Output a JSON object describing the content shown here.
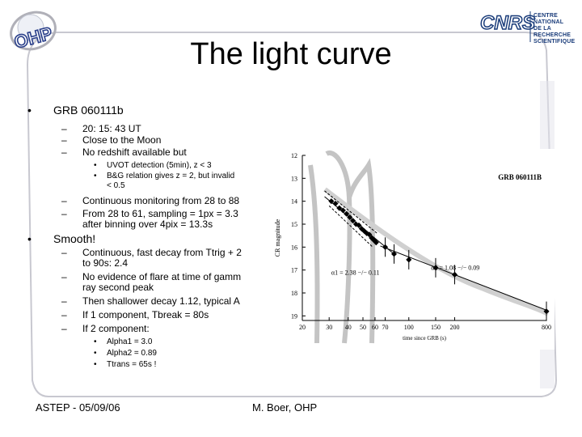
{
  "slide": {
    "title": "The light curve",
    "footer_left": "ASTEP - 05/09/06",
    "footer_right": "M. Boer, OHP",
    "accent_color": "#c8c8d0"
  },
  "logos": {
    "left_text": "OHP",
    "right_text": "CNRS",
    "right_caption_1": "CENTRE NATIONAL",
    "right_caption_2": "DE LA RECHERCHE",
    "right_caption_3": "SCIENTIFIQUE"
  },
  "bullets": {
    "b1": "GRB 060111b",
    "b1_1": "20: 15: 43 UT",
    "b1_2": "Close to the Moon",
    "b1_3": "No redshift available but",
    "b1_3_1": "UVOT detection (5min), z < 3",
    "b1_3_2": "B&G relation gives z = 2, but invalid",
    "b1_3_2b": "< 0.5",
    "b1_4": "Continuous monitoring from 28 to 88",
    "b1_5": "From 28 to 61, sampling = 1px = 3.3",
    "b1_5b": "after binning over 4pix = 13.3s",
    "b2": "Smooth!",
    "b2_1": "Continuous, fast decay from Ttrig + 2",
    "b2_1b": "to 90s: 2.4",
    "b2_2": "No evidence of flare at time of gamm",
    "b2_2b": "ray second peak",
    "b2_3": "Then shallower decay 1.12, typical A",
    "b2_4": "If 1 component, Tbreak = 80s",
    "b2_5": "If 2 component:",
    "b2_5_1": "Alpha1 = 3.0",
    "b2_5_2": "Alpha2 = 0.89",
    "b2_5_3": "Ttrans = 65s !"
  },
  "chart_data": {
    "type": "scatter",
    "title": "GRB 060111B",
    "xlabel": "time since GRB (s)",
    "ylabel": "CR magnitude",
    "x_scale": "log",
    "xlim": [
      20,
      800
    ],
    "ylim": [
      19.2,
      12
    ],
    "y_inverted": true,
    "x_ticks": [
      "20",
      "30",
      "40",
      "50",
      "60",
      "70",
      "100",
      "150",
      "200",
      "800"
    ],
    "y_ticks": [
      "12",
      "13",
      "14",
      "15",
      "16",
      "17",
      "18",
      "19"
    ],
    "annotations": [
      "α1 = 2.38 −/− 0.11",
      "α2 = 1.08 −/− 0.09"
    ],
    "series": [
      {
        "x": [
          31,
          33,
          35,
          37,
          39,
          41,
          43,
          45,
          47,
          49,
          51,
          53,
          55,
          57,
          59,
          61,
          70,
          80,
          100,
          150,
          200,
          800
        ],
        "y": [
          14.0,
          14.1,
          14.3,
          14.4,
          14.55,
          14.7,
          14.85,
          15.0,
          15.05,
          15.2,
          15.3,
          15.4,
          15.45,
          15.6,
          15.7,
          15.8,
          16.0,
          16.3,
          16.55,
          16.9,
          17.2,
          18.8
        ]
      }
    ],
    "fit_lines": [
      {
        "x": [
          28,
          80
        ],
        "y": [
          13.8,
          16.3
        ]
      },
      {
        "x": [
          65,
          800
        ],
        "y": [
          15.95,
          18.75
        ]
      }
    ]
  }
}
